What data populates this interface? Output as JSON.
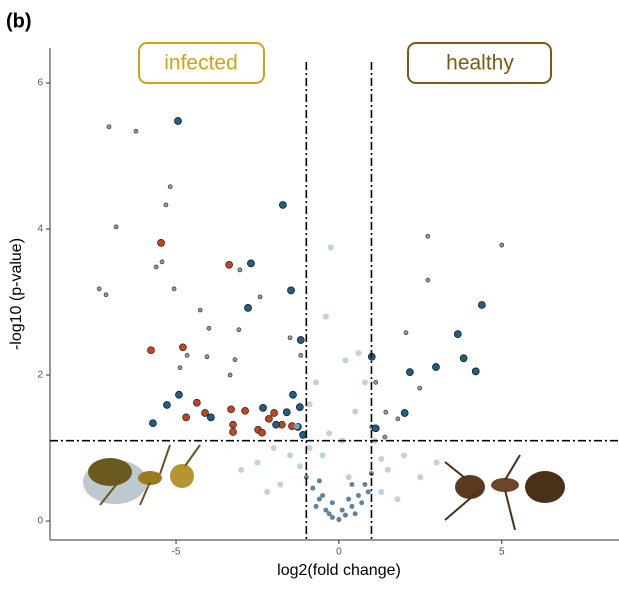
{
  "chart_data": {
    "type": "scatter",
    "panel_label": "(b)",
    "annotations": [
      "infected",
      "healthy"
    ],
    "xlabel": "log2(fold change)",
    "ylabel": "-log10 (p-value)",
    "xlim": [
      -8.87,
      8.6
    ],
    "ylim": [
      -0.26,
      6.48
    ],
    "xticks": [
      -5,
      0,
      5
    ],
    "yticks": [
      0,
      2,
      4,
      6
    ],
    "vlines": [
      -1,
      1
    ],
    "hline": 1.1,
    "series": [
      {
        "color": "#9a9a9a",
        "edgecolor": "#333333",
        "x": [
          -7.06,
          -6.23,
          -5.18,
          -5.31,
          -6.84,
          -5.43,
          -5.61,
          -7.36,
          -7.15,
          -5.06,
          -3.04,
          -2.42,
          -4.26,
          -3.07,
          -3.99,
          -4.66,
          -4.05,
          -1.5,
          -1.17,
          -4.88,
          -3.34,
          -3.19,
          2.73,
          5.0,
          2.73,
          2.06,
          2.48,
          1.13,
          1.44,
          1.81,
          1.41,
          1.01
        ],
        "values": [
          5.4,
          5.34,
          4.58,
          4.33,
          4.03,
          3.55,
          3.48,
          3.18,
          3.1,
          3.18,
          3.44,
          3.07,
          2.89,
          2.62,
          2.64,
          2.27,
          2.25,
          2.51,
          2.27,
          2.1,
          2.0,
          2.21,
          3.9,
          3.78,
          3.3,
          2.58,
          1.82,
          1.9,
          1.49,
          1.4,
          1.15,
          1.29
        ]
      },
      {
        "color": "#c0461f",
        "edgecolor": "#222222",
        "x": [
          -5.46,
          -3.37,
          -5.77,
          -4.79,
          -4.36,
          -4.69,
          -4.11,
          -3.31,
          -2.88,
          -3.25,
          -3.25,
          -2.15,
          -2.48,
          -2.36,
          -1.99,
          -1.75,
          -1.44
        ],
        "values": [
          3.81,
          3.51,
          2.34,
          2.38,
          1.62,
          1.42,
          1.48,
          1.53,
          1.51,
          1.32,
          1.22,
          1.4,
          1.25,
          1.21,
          1.48,
          1.32,
          1.3
        ]
      },
      {
        "color": "#1f5f86",
        "edgecolor": "#111111",
        "x": [
          -4.94,
          -1.72,
          -2.7,
          -2.79,
          -1.47,
          -1.17,
          -4.91,
          -5.28,
          -3.93,
          -2.33,
          -1.6,
          -1.26,
          -1.2,
          -1.41,
          -1.93,
          -1.1,
          -5.71,
          4.39,
          3.65,
          3.83,
          4.2,
          2.98,
          2.18,
          1.01,
          2.02,
          1.13
        ],
        "values": [
          5.48,
          4.33,
          3.53,
          2.92,
          3.16,
          2.48,
          1.73,
          1.59,
          1.42,
          1.55,
          1.49,
          1.29,
          1.56,
          1.73,
          1.32,
          1.18,
          1.34,
          2.96,
          2.56,
          2.23,
          2.05,
          2.11,
          2.04,
          2.25,
          1.48,
          1.27
        ]
      },
      {
        "color": "#9fc0d4",
        "edgecolor": "none",
        "x": [
          -0.25,
          -2.5,
          -2.0,
          -1.8,
          -3.0,
          -1.3,
          -0.9,
          -0.7,
          -0.3,
          0.1,
          0.5,
          0.8,
          1.3,
          1.5,
          2.0,
          2.5,
          3.0,
          -0.9,
          0.3,
          -0.5,
          1.1,
          0.6,
          -0.4,
          0.2,
          -1.5,
          -1.2,
          1.3,
          -2.2,
          1.8
        ],
        "values": [
          3.75,
          0.8,
          1.0,
          0.5,
          0.7,
          1.3,
          1.6,
          1.9,
          1.2,
          1.1,
          1.5,
          1.9,
          0.4,
          0.7,
          0.9,
          0.6,
          0.8,
          1.0,
          0.6,
          0.9,
          1.1,
          2.3,
          2.8,
          2.2,
          0.9,
          0.75,
          0.85,
          0.4,
          0.3
        ]
      },
      {
        "color": "#1d4f72",
        "edgecolor": "none",
        "x": [
          -1.0,
          -0.8,
          -0.6,
          -0.4,
          -0.2,
          0.0,
          0.2,
          0.4,
          0.6,
          0.8,
          1.0,
          -0.7,
          -0.5,
          -0.3,
          0.1,
          0.3,
          0.5,
          0.7,
          0.9,
          -0.2,
          0.4,
          -0.6
        ],
        "values": [
          0.6,
          0.45,
          0.3,
          0.15,
          0.05,
          0.02,
          0.08,
          0.2,
          0.35,
          0.5,
          0.65,
          0.2,
          0.35,
          0.1,
          0.15,
          0.3,
          0.1,
          0.25,
          0.4,
          0.25,
          0.5,
          0.55
        ]
      }
    ]
  }
}
